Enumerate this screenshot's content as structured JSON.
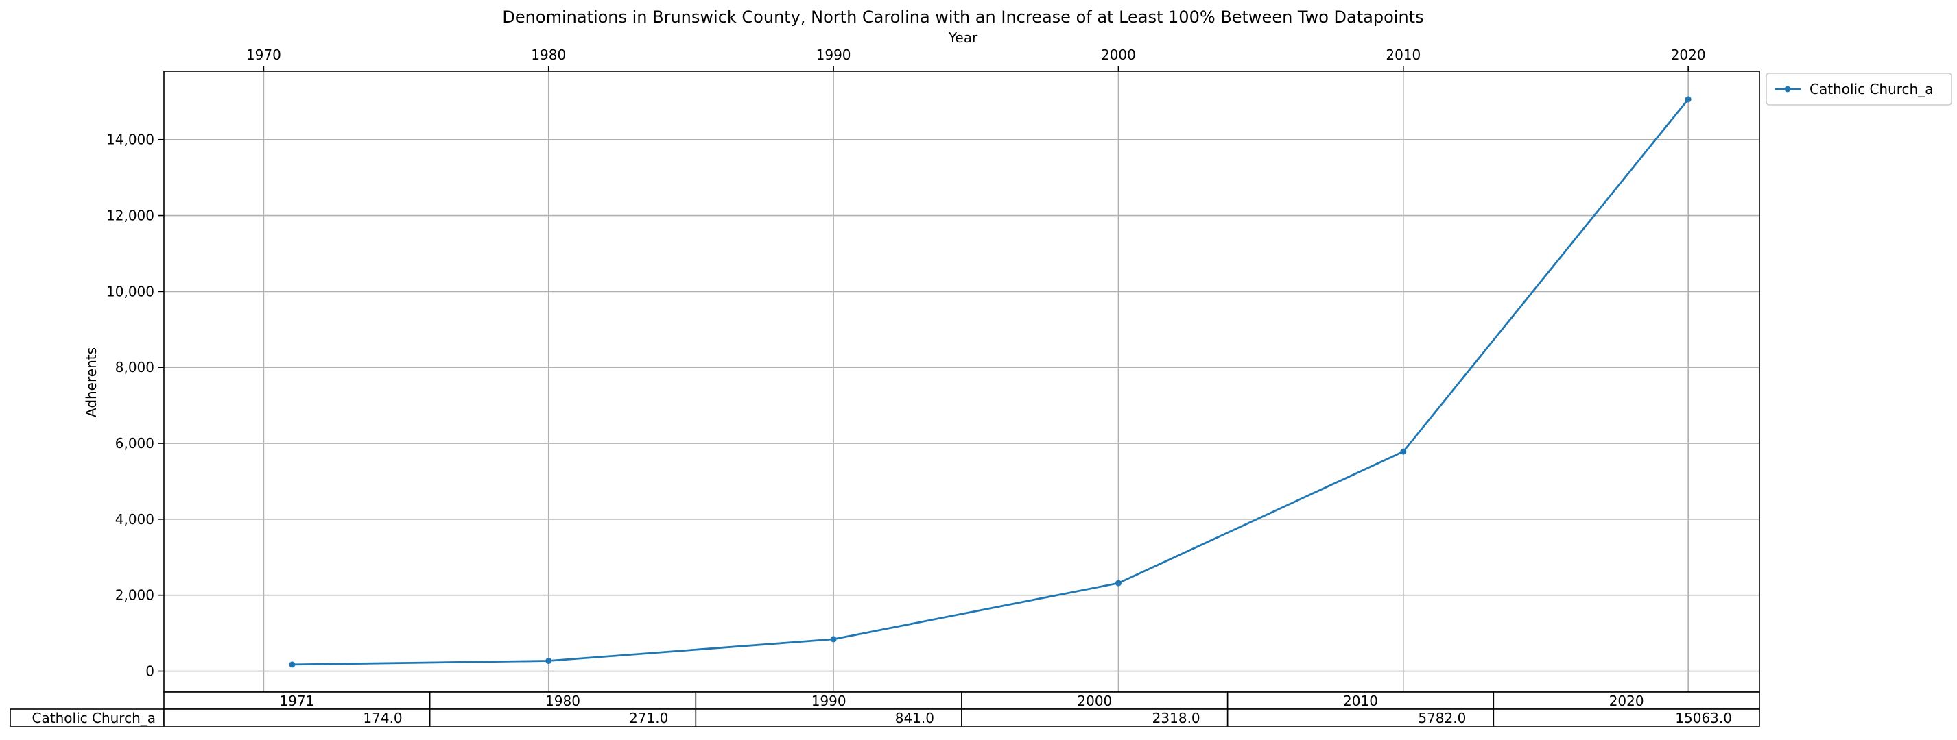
{
  "chart_data": {
    "type": "line",
    "title": "Denominations in Brunswick County, North Carolina with an Increase of at Least 100% Between Two Datapoints",
    "xlabel": "Year",
    "ylabel": "Adherents",
    "x_axis_position": "top",
    "xlim": [
      1966.5,
      2022.5
    ],
    "ylim": [
      -550,
      15800
    ],
    "x_ticks": [
      1970,
      1980,
      1990,
      2000,
      2010,
      2020
    ],
    "y_ticks": [
      0,
      2000,
      4000,
      6000,
      8000,
      10000,
      12000,
      14000
    ],
    "y_tick_labels": [
      "0",
      "2,000",
      "4,000",
      "6,000",
      "8,000",
      "10,000",
      "12,000",
      "14,000"
    ],
    "grid": true,
    "legend_position": "outside-top-right",
    "series": [
      {
        "name": "Catholic Church_a",
        "color": "#1f77b4",
        "marker": "dot",
        "x": [
          1971,
          1980,
          1990,
          2000,
          2010,
          2020
        ],
        "y": [
          174,
          271,
          841,
          2318,
          5782,
          15063
        ]
      }
    ],
    "table": {
      "columns": [
        "1971",
        "1980",
        "1990",
        "2000",
        "2010",
        "2020"
      ],
      "rows": [
        {
          "label": "Catholic Church_a",
          "cells": [
            "174.0",
            "271.0",
            "841.0",
            "2318.0",
            "5782.0",
            "15063.0"
          ]
        }
      ]
    }
  }
}
